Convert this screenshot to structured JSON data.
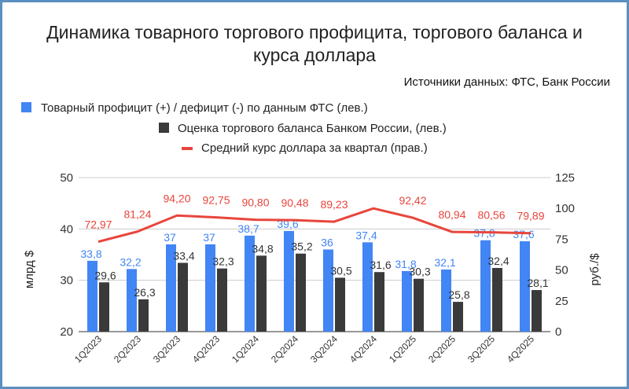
{
  "chart_data": {
    "type": "bar",
    "title": "Динамика товарного торгового профицита, торгового баланса и курса доллара",
    "title_lines": [
      "Динамика товарного торгового профицита, торгового баланса и",
      "курса доллара"
    ],
    "subtitle": "Источники данных: ФТС, Банк России",
    "categories": [
      "1Q2023",
      "2Q2023",
      "3Q2023",
      "4Q2023",
      "1Q2024",
      "2Q2024",
      "3Q2024",
      "4Q2024",
      "1Q2025",
      "2Q2025",
      "3Q2025",
      "4Q2025"
    ],
    "series": [
      {
        "name": "Товарный профицит (+) / дефицит (-) по данным ФТС (лев.)",
        "type": "bar",
        "axis": "left",
        "color": "#4285f4",
        "values": [
          33.8,
          32.2,
          37,
          37,
          38.7,
          39.6,
          36,
          37.4,
          31.8,
          32.1,
          37.8,
          37.6
        ],
        "labels": [
          "33,8",
          "32,2",
          "37",
          "37",
          "38,7",
          "39,6",
          "36",
          "37,4",
          "31,8",
          "32,1",
          "37,8",
          "37,6"
        ]
      },
      {
        "name": "Оценка торгового баланса Банком России, (лев.)",
        "type": "bar",
        "axis": "left",
        "color": "#3a3a3a",
        "values": [
          29.6,
          26.3,
          33.4,
          32.3,
          34.8,
          35.2,
          30.5,
          31.6,
          30.3,
          25.8,
          32.4,
          28.1
        ],
        "labels": [
          "29,6",
          "26,3",
          "33,4",
          "32,3",
          "34,8",
          "35,2",
          "30,5",
          "31,6",
          "30,3",
          "25,8",
          "32,4",
          "28,1"
        ]
      },
      {
        "name": "Средний курс доллара за квартал (прав.)",
        "type": "line",
        "axis": "right",
        "color": "#e8453c",
        "values": [
          72.97,
          81.24,
          94.2,
          92.75,
          90.8,
          90.48,
          89.23,
          100.0,
          92.42,
          80.94,
          80.56,
          79.89
        ],
        "labels": [
          "72,97",
          "81,24",
          "94,20",
          "92,75",
          "90,80",
          "90,48",
          "89,23",
          "",
          "92,42",
          "80,94",
          "80,56",
          "79,89"
        ]
      }
    ],
    "ylabel": "млрд $",
    "y2label": "руб./$",
    "ylim": [
      20,
      50
    ],
    "y2lim": [
      0,
      125
    ],
    "yticks": [
      "20",
      "30",
      "40",
      "50"
    ],
    "y2ticks": [
      "0",
      "25",
      "50",
      "75",
      "100",
      "125"
    ],
    "grid": true,
    "legend": "top-left"
  }
}
